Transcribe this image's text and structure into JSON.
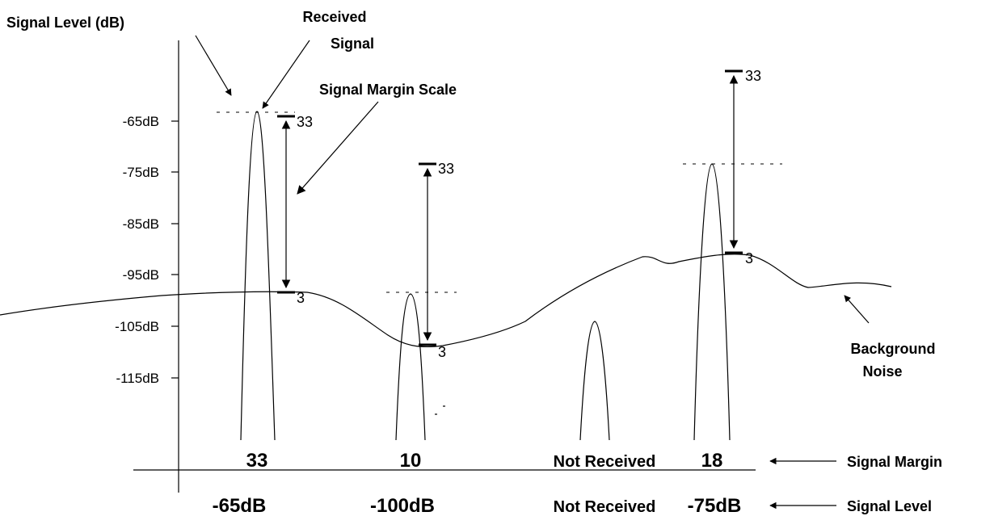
{
  "title": "Signal Level (dB)",
  "received_signal": [
    "Received",
    "Signal"
  ],
  "signal_margin_scale": "Signal Margin Scale",
  "background_noise": [
    "Background",
    "Noise"
  ],
  "y_ticks": [
    "-65dB",
    "-75dB",
    "-85dB",
    "-95dB",
    "-105dB",
    "-115dB"
  ],
  "scale_top": "33",
  "scale_bottom": "3",
  "margins": {
    "s1": "33",
    "s2": "10",
    "s3": "Not Received",
    "s4": "18",
    "row_label": "Signal Margin"
  },
  "levels": {
    "s1": "-65dB",
    "s2": "-100dB",
    "s3": "Not Received",
    "s4": "-75dB",
    "row_label": "Signal Level"
  }
}
